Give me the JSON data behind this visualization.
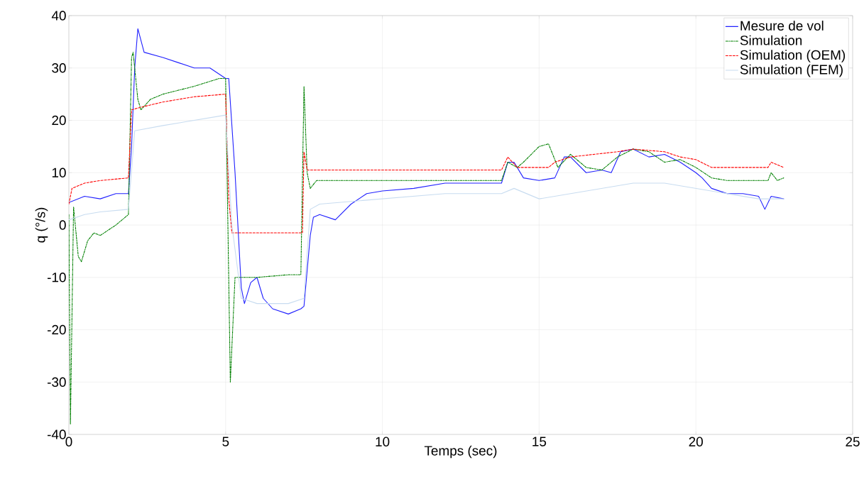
{
  "chart_data": {
    "type": "line",
    "xlabel": "Temps (sec)",
    "ylabel": "q (°/s)",
    "xlim": [
      0,
      25
    ],
    "ylim": [
      -40,
      40
    ],
    "xticks": [
      0,
      5,
      10,
      15,
      20,
      25
    ],
    "yticks": [
      -40,
      -30,
      -20,
      -10,
      0,
      10,
      20,
      30,
      40
    ],
    "grid": true,
    "legend": "top right",
    "series": [
      {
        "name": "Mesure de vol",
        "color": "#2020ff",
        "line_style": "solid",
        "x": [
          0,
          0.5,
          1,
          1.5,
          1.9,
          2.0,
          2.1,
          2.2,
          2.4,
          3,
          3.5,
          4,
          4.5,
          5.0,
          5.1,
          5.3,
          5.5,
          5.6,
          5.8,
          6,
          6.2,
          6.5,
          7,
          7.4,
          7.5,
          7.7,
          7.8,
          8,
          8.5,
          9,
          9.5,
          10,
          11,
          12,
          13,
          13.8,
          14,
          14.2,
          14.5,
          15,
          15.5,
          15.8,
          16,
          16.5,
          17,
          17.3,
          17.6,
          18,
          18.5,
          19,
          19.5,
          20,
          20.2,
          20.5,
          21,
          21.5,
          22,
          22.2,
          22.4,
          22.8
        ],
        "values": [
          4.3,
          5.5,
          5,
          6,
          6,
          15,
          30,
          37.5,
          33,
          32,
          31,
          30,
          30,
          28,
          28,
          10,
          -12,
          -15,
          -11,
          -10,
          -14,
          -16,
          -17,
          -16,
          -15.5,
          -2,
          1.5,
          2,
          1,
          4,
          6,
          6.5,
          7,
          8,
          8,
          8,
          12,
          12,
          9,
          8.5,
          9,
          13,
          13,
          10,
          10.5,
          10,
          14,
          14.5,
          13,
          13.5,
          12,
          10,
          9,
          7,
          6,
          6,
          5.5,
          3,
          5.5,
          5
        ]
      },
      {
        "name": "Simulation",
        "color": "#008000",
        "line_style": "dashdot",
        "x": [
          0,
          0.05,
          0.15,
          0.3,
          0.4,
          0.6,
          0.8,
          1,
          1.5,
          1.8,
          1.9,
          2.0,
          2.05,
          2.2,
          2.3,
          2.6,
          3,
          4,
          4.8,
          5.0,
          5.15,
          5.3,
          6,
          7,
          7.4,
          7.5,
          7.6,
          7.7,
          7.9,
          10,
          13.8,
          14,
          14.3,
          14.5,
          15,
          15.3,
          15.6,
          16,
          16.5,
          17,
          17.5,
          18,
          18.5,
          19,
          19.5,
          20,
          20.5,
          21,
          22.3,
          22.4,
          22.6,
          22.8
        ],
        "values": [
          2,
          -38,
          3.5,
          -6,
          -7,
          -3,
          -1.5,
          -2,
          0,
          1.5,
          2,
          32,
          33,
          24,
          22,
          24,
          25,
          26.5,
          28,
          28,
          -30,
          -10,
          -10,
          -9.5,
          -9.5,
          26.5,
          10,
          7,
          8.5,
          8.5,
          8.5,
          12,
          11,
          12,
          15,
          15.5,
          11,
          13.5,
          11,
          10.5,
          13,
          14.5,
          14,
          12,
          12.5,
          11,
          9,
          8.5,
          8.5,
          10,
          8.5,
          9
        ]
      },
      {
        "name": "Simulation (OEM)",
        "color": "#ff0000",
        "line_style": "dashed",
        "x": [
          0,
          0.1,
          0.5,
          1,
          1.9,
          2.0,
          2.3,
          3,
          4,
          5,
          5.1,
          5.2,
          7.45,
          7.5,
          7.6,
          10,
          13.8,
          14,
          14.3,
          15.3,
          15.5,
          16,
          17.5,
          18,
          19,
          19.5,
          20,
          20.5,
          22.3,
          22.4,
          22.8
        ],
        "values": [
          4,
          7,
          8,
          8.5,
          9,
          22,
          22.5,
          23.5,
          24.5,
          25,
          5,
          -1.5,
          -1.5,
          14,
          10.5,
          10.5,
          10.5,
          13,
          11,
          11,
          12,
          13,
          14,
          14.5,
          14,
          13,
          12.5,
          11,
          11,
          12,
          11
        ]
      },
      {
        "name": "Simulation (FEM)",
        "color": "#c8dcf0",
        "line_style": "solid",
        "x": [
          0,
          0.5,
          1,
          1.9,
          2.1,
          3,
          4,
          5,
          5.2,
          5.5,
          6,
          7,
          7.5,
          7.7,
          8,
          10,
          12,
          13.8,
          14.2,
          15,
          16,
          17,
          18,
          19,
          20,
          21,
          22,
          22.8
        ],
        "values": [
          1,
          2,
          2.5,
          3,
          18,
          19,
          20,
          21,
          0,
          -14,
          -15,
          -15,
          -14,
          3,
          4,
          5,
          6,
          6,
          7,
          5,
          6,
          7,
          8,
          8,
          7,
          6,
          5,
          5
        ]
      }
    ]
  }
}
